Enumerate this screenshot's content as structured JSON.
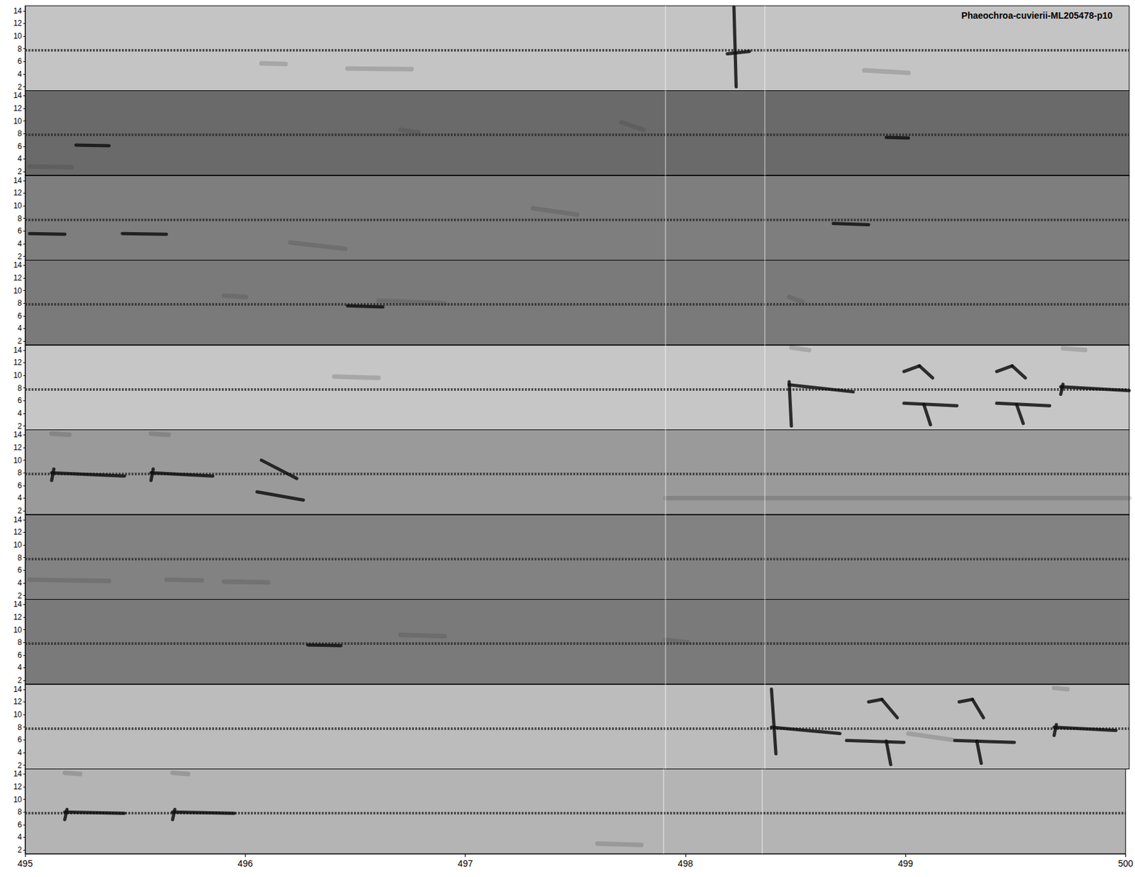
{
  "chart_data": {
    "type": "spectrogram",
    "title": "Phaeochroa-cuvierii-ML205478-p10",
    "xlim": [
      495,
      500
    ],
    "xticks": [
      495,
      496,
      497,
      498,
      499,
      500
    ],
    "ylim": [
      1.4,
      14.8
    ],
    "yticks": [
      2,
      4,
      6,
      8,
      10,
      12,
      14
    ],
    "cursors": [
      497.9,
      498.35
    ],
    "panels": [
      {
        "color": "#c4c4c4",
        "band": 7.8,
        "calls": [
          [
            498.18,
            7.2,
            498.28,
            7.6
          ],
          [
            498.21,
            14.6,
            498.22,
            2.0
          ]
        ],
        "faint": [
          [
            496.07,
            5.7,
            496.18,
            5.6
          ],
          [
            496.46,
            4.9,
            496.75,
            4.8
          ],
          [
            498.8,
            4.6,
            499.0,
            4.2
          ]
        ]
      },
      {
        "color": "#6a6a6a",
        "band": 7.8,
        "calls": [
          [
            495.23,
            6.2,
            495.38,
            6.1
          ],
          [
            498.9,
            7.4,
            499.0,
            7.3
          ]
        ],
        "faint": [
          [
            495.02,
            2.8,
            495.21,
            2.7
          ],
          [
            496.7,
            8.6,
            496.78,
            8.2
          ],
          [
            497.7,
            9.8,
            497.8,
            8.6
          ]
        ]
      },
      {
        "color": "#7e7e7e",
        "band": 7.8,
        "calls": [
          [
            495.02,
            5.6,
            495.18,
            5.5
          ],
          [
            495.44,
            5.6,
            495.64,
            5.5
          ],
          [
            498.66,
            7.2,
            498.82,
            7.0
          ]
        ],
        "faint": [
          [
            496.2,
            4.2,
            496.45,
            3.2
          ],
          [
            497.3,
            9.6,
            497.5,
            8.6
          ]
        ]
      },
      {
        "color": "#7a7a7a",
        "band": 7.8,
        "calls": [
          [
            496.46,
            7.6,
            496.62,
            7.4
          ]
        ],
        "faint": [
          [
            498.46,
            9.0,
            498.52,
            8.2
          ],
          [
            495.9,
            9.2,
            496.0,
            9.0
          ],
          [
            496.6,
            8.4,
            496.9,
            8.0
          ]
        ]
      },
      {
        "color": "#c6c6c6",
        "band": 7.8,
        "calls": [
          [
            498.46,
            9.0,
            498.47,
            2.0
          ],
          [
            498.46,
            8.5,
            498.75,
            7.4
          ],
          [
            498.98,
            10.6,
            499.05,
            11.5
          ],
          [
            499.05,
            11.5,
            499.11,
            9.6
          ],
          [
            498.98,
            5.6,
            499.22,
            5.2
          ],
          [
            499.07,
            5.4,
            499.1,
            2.2
          ],
          [
            499.4,
            10.6,
            499.47,
            11.5
          ],
          [
            499.47,
            11.5,
            499.53,
            9.6
          ],
          [
            499.4,
            5.6,
            499.64,
            5.2
          ],
          [
            499.49,
            5.4,
            499.52,
            2.4
          ],
          [
            499.69,
            7.0,
            499.7,
            8.6
          ],
          [
            499.69,
            8.2,
            500.0,
            7.6
          ]
        ],
        "faint": [
          [
            498.47,
            14.4,
            498.55,
            14.0
          ],
          [
            499.7,
            14.3,
            499.8,
            14.0
          ],
          [
            496.4,
            9.8,
            496.6,
            9.6
          ]
        ]
      },
      {
        "color": "#9a9a9a",
        "band": 7.8,
        "calls": [
          [
            495.12,
            6.8,
            495.13,
            8.6
          ],
          [
            495.12,
            8.0,
            495.45,
            7.5
          ],
          [
            495.57,
            6.8,
            495.58,
            8.6
          ],
          [
            495.57,
            8.0,
            495.85,
            7.5
          ],
          [
            496.05,
            5.0,
            496.26,
            3.7
          ],
          [
            496.07,
            10.0,
            496.23,
            7.1
          ]
        ],
        "faint": [
          [
            495.12,
            14.2,
            495.2,
            14.0
          ],
          [
            495.57,
            14.2,
            495.65,
            14.0
          ],
          [
            497.9,
            4.0,
            500.0,
            4.0
          ]
        ]
      },
      {
        "color": "#828282",
        "band": 7.8,
        "calls": [],
        "faint": [
          [
            495.02,
            4.5,
            495.38,
            4.3
          ],
          [
            495.64,
            4.5,
            495.8,
            4.4
          ],
          [
            495.9,
            4.2,
            496.1,
            4.1
          ]
        ]
      },
      {
        "color": "#7a7a7a",
        "band": 7.8,
        "calls": [
          [
            496.28,
            7.6,
            496.43,
            7.5
          ]
        ],
        "faint": [
          [
            497.9,
            8.4,
            498.0,
            8.0
          ],
          [
            496.7,
            9.2,
            496.9,
            9.0
          ]
        ]
      },
      {
        "color": "#bcbcbc",
        "band": 7.8,
        "calls": [
          [
            498.38,
            14.0,
            498.4,
            3.8
          ],
          [
            498.38,
            8.0,
            498.69,
            7.0
          ],
          [
            498.82,
            12.0,
            498.88,
            12.4
          ],
          [
            498.88,
            12.4,
            498.95,
            9.5
          ],
          [
            498.72,
            5.9,
            498.98,
            5.6
          ],
          [
            498.9,
            5.8,
            498.92,
            2.1
          ],
          [
            499.23,
            12.0,
            499.29,
            12.4
          ],
          [
            499.29,
            12.4,
            499.34,
            9.5
          ],
          [
            499.21,
            5.9,
            499.48,
            5.6
          ],
          [
            499.31,
            5.8,
            499.33,
            2.3
          ],
          [
            499.66,
            6.7,
            499.67,
            8.4
          ],
          [
            499.66,
            8.0,
            499.94,
            7.5
          ]
        ],
        "faint": [
          [
            499.66,
            14.2,
            499.72,
            14.0
          ],
          [
            499.0,
            7.0,
            499.2,
            6.0
          ]
        ]
      },
      {
        "color": "#b4b4b4",
        "band": 7.8,
        "calls": [
          [
            495.18,
            6.8,
            495.19,
            8.4
          ],
          [
            495.18,
            8.0,
            495.45,
            7.8
          ],
          [
            495.67,
            6.8,
            495.68,
            8.4
          ],
          [
            495.67,
            8.0,
            495.95,
            7.8
          ]
        ],
        "faint": [
          [
            495.18,
            14.2,
            495.25,
            14.0
          ],
          [
            495.67,
            14.2,
            495.74,
            14.0
          ],
          [
            497.6,
            3.0,
            497.8,
            2.8
          ]
        ]
      }
    ]
  }
}
